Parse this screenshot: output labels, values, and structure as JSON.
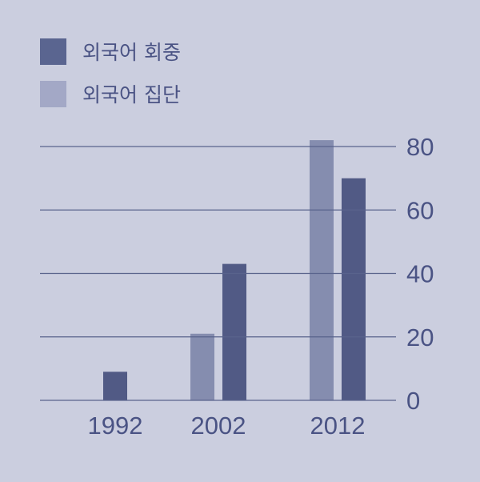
{
  "chart_data": {
    "type": "bar",
    "categories": [
      "1992",
      "2002",
      "2012"
    ],
    "series": [
      {
        "name": "외국어 집단",
        "values": [
          null,
          21,
          82
        ],
        "color": "#858daf"
      },
      {
        "name": "외국어 회중",
        "values": [
          9,
          43,
          70
        ],
        "color": "#515a85"
      }
    ],
    "legend": [
      {
        "label": "외국어 회중",
        "color": "#5a6590"
      },
      {
        "label": "외국어 집단",
        "color": "#a3a8c6"
      }
    ],
    "yticks": [
      "0",
      "20",
      "40",
      "60",
      "80"
    ],
    "ylim": [
      0,
      80
    ],
    "y_axis_side": "right",
    "grid": true,
    "legend_placement": "top-left",
    "background": "#cbcedf",
    "gridline_color": "#59638c"
  }
}
